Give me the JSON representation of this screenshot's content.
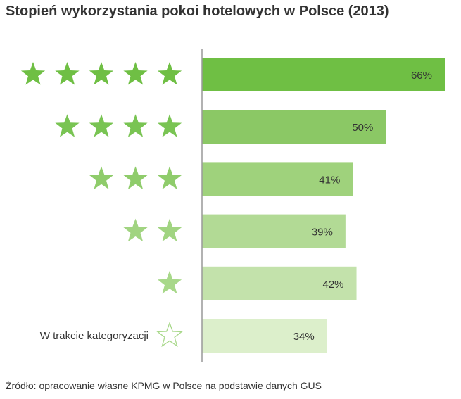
{
  "chart_data": {
    "type": "bar",
    "orientation": "horizontal",
    "title": "Stopień wykorzystania pokoi hotelowych w Polsce (2013)",
    "categories": [
      {
        "stars": 5,
        "label": ""
      },
      {
        "stars": 4,
        "label": ""
      },
      {
        "stars": 3,
        "label": ""
      },
      {
        "stars": 2,
        "label": ""
      },
      {
        "stars": 1,
        "label": ""
      },
      {
        "stars": 0,
        "label": "W trakcie kategoryzacji"
      }
    ],
    "values": [
      66,
      50,
      41,
      39,
      42,
      34
    ],
    "value_labels": [
      "66%",
      "50%",
      "41%",
      "39%",
      "42%",
      "34%"
    ],
    "xlim": [
      0,
      66
    ],
    "grid": false,
    "source": "Źródło: opracowanie własne KPMG w Polsce na podstawie danych GUS",
    "colors": {
      "bars": [
        "#6fbf44",
        "#8bc865",
        "#9fd27c",
        "#b2da95",
        "#c3e2ab",
        "#dcefcb"
      ],
      "stars": [
        "#6fbf44",
        "#79c453",
        "#8fcc6b",
        "#a1d481",
        "#a8d88a",
        "#ffffff"
      ],
      "outline_star": "#a8d88a",
      "axis": "#999999"
    }
  }
}
